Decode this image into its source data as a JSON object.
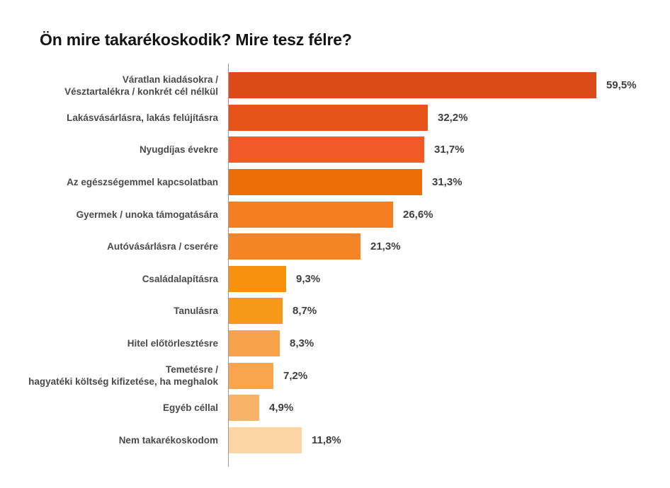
{
  "title": "Ön mire takarékoskodik? Mire tesz félre?",
  "colors": {
    "background": "#ffffff",
    "title_text": "#141414",
    "category_text": "#4a4a48",
    "value_text": "#3e3e3c",
    "axis_line": "#9b9b9b"
  },
  "chart_data": {
    "type": "bar",
    "orientation": "horizontal",
    "title": "Ön mire takarékoskodik? Mire tesz félre?",
    "xlabel": "",
    "ylabel": "",
    "xlim": [
      0,
      62
    ],
    "grid": false,
    "legend": false,
    "value_suffix": "%",
    "decimal_separator": ",",
    "categories": [
      "Váratlan kiadásokra / Vésztartalékra / konkrét cél nélkül",
      "Lakásvásárlásra, lakás felújításra",
      "Nyugdíjas évekre",
      "Az egészségemmel kapcsolatban",
      "Gyermek / unoka támogatására",
      "Autóvásárlásra / cserére",
      "Családalapításra",
      "Tanulásra",
      "Hitel előtörlesztésre",
      "Temetésre / hagyatéki költség kifizetése, ha meghalok",
      "Egyéb céllal",
      "Nem takarékoskodom"
    ],
    "values": [
      59.5,
      32.2,
      31.7,
      31.3,
      26.6,
      21.3,
      9.3,
      8.7,
      8.3,
      7.2,
      4.9,
      11.8
    ],
    "items": [
      {
        "label_lines": [
          "Váratlan kiadásokra /",
          "Vésztartalékra / konkrét cél nélkül"
        ],
        "value": 59.5,
        "value_label": "59,5%",
        "color": "#db4a17"
      },
      {
        "label_lines": [
          "Lakásvásárlásra, lakás felújításra"
        ],
        "value": 32.2,
        "value_label": "32,2%",
        "color": "#e75419"
      },
      {
        "label_lines": [
          "Nyugdíjas évekre"
        ],
        "value": 31.7,
        "value_label": "31,7%",
        "color": "#f15a26"
      },
      {
        "label_lines": [
          "Az egészségemmel kapcsolatban"
        ],
        "value": 31.3,
        "value_label": "31,3%",
        "color": "#ec6d06"
      },
      {
        "label_lines": [
          "Gyermek / unoka támogatására"
        ],
        "value": 26.6,
        "value_label": "26,6%",
        "color": "#f57e21"
      },
      {
        "label_lines": [
          "Autóvásárlásra / cserére"
        ],
        "value": 21.3,
        "value_label": "21,3%",
        "color": "#f58426"
      },
      {
        "label_lines": [
          "Családalapításra"
        ],
        "value": 9.3,
        "value_label": "9,3%",
        "color": "#f6920e"
      },
      {
        "label_lines": [
          "Tanulásra"
        ],
        "value": 8.7,
        "value_label": "8,7%",
        "color": "#f79918"
      },
      {
        "label_lines": [
          "Hitel előtörlesztésre"
        ],
        "value": 8.3,
        "value_label": "8,3%",
        "color": "#f8a249"
      },
      {
        "label_lines": [
          "Temetésre /",
          "hagyatéki költség kifizetése, ha meghalok"
        ],
        "value": 7.2,
        "value_label": "7,2%",
        "color": "#f8a54e"
      },
      {
        "label_lines": [
          "Egyéb céllal"
        ],
        "value": 4.9,
        "value_label": "4,9%",
        "color": "#f9b369"
      },
      {
        "label_lines": [
          "Nem takarékoskodom"
        ],
        "value": 11.8,
        "value_label": "11,8%",
        "color": "#fbd5a4"
      }
    ]
  }
}
